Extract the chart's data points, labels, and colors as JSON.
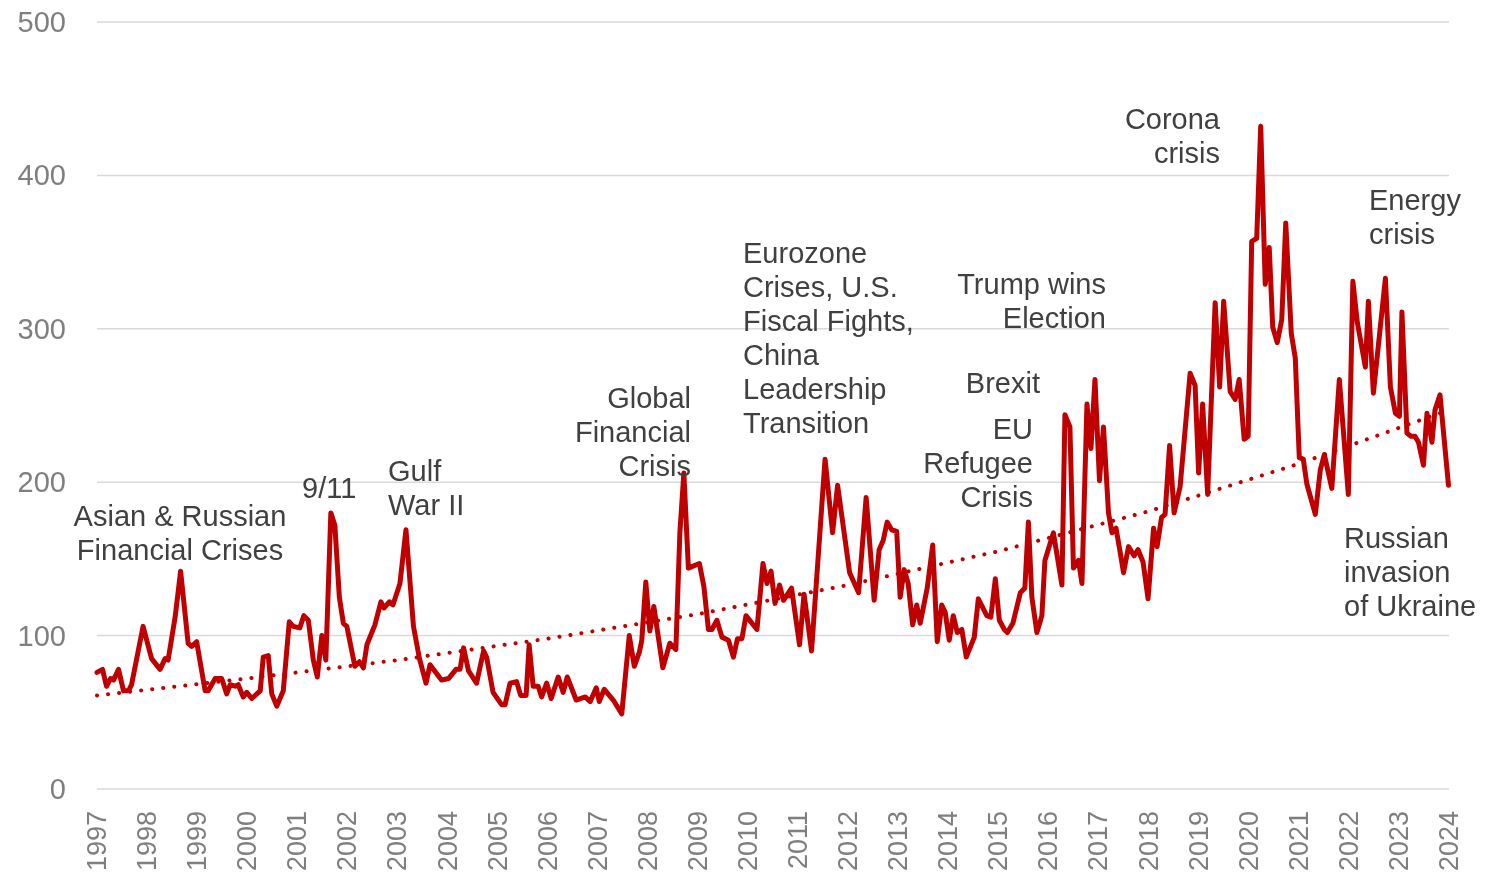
{
  "chart_data": {
    "type": "line",
    "x": [
      1997.0,
      1997.11,
      1997.19,
      1997.27,
      1997.33,
      1997.43,
      1997.53,
      1997.63,
      1997.69,
      1997.92,
      1998.09,
      1998.26,
      1998.36,
      1998.42,
      1998.56,
      1998.67,
      1998.82,
      1998.89,
      1998.99,
      1999.16,
      1999.22,
      1999.36,
      1999.49,
      1999.59,
      1999.66,
      1999.76,
      1999.82,
      1999.92,
      1999.99,
      2000.09,
      2000.26,
      2000.32,
      2000.42,
      2000.49,
      2000.59,
      2000.72,
      2000.84,
      2000.92,
      2001.05,
      2001.13,
      2001.22,
      2001.32,
      2001.4,
      2001.49,
      2001.57,
      2001.67,
      2001.75,
      2001.84,
      2001.92,
      2001.99,
      2002.15,
      2002.24,
      2002.32,
      2002.39,
      2002.55,
      2002.67,
      2002.73,
      2002.84,
      2002.91,
      2003.05,
      2003.17,
      2003.32,
      2003.44,
      2003.57,
      2003.65,
      2003.88,
      2004.02,
      2004.17,
      2004.25,
      2004.32,
      2004.42,
      2004.58,
      2004.72,
      2004.78,
      2004.91,
      2005.08,
      2005.15,
      2005.25,
      2005.38,
      2005.46,
      2005.57,
      2005.63,
      2005.71,
      2005.81,
      2005.88,
      2005.98,
      2006.07,
      2006.21,
      2006.31,
      2006.39,
      2006.57,
      2006.75,
      2006.85,
      2006.97,
      2007.03,
      2007.13,
      2007.31,
      2007.48,
      2007.63,
      2007.73,
      2007.83,
      2007.88,
      2007.96,
      2008.04,
      2008.12,
      2008.3,
      2008.44,
      2008.56,
      2008.64,
      2008.72,
      2008.81,
      2009.03,
      2009.12,
      2009.21,
      2009.28,
      2009.38,
      2009.48,
      2009.61,
      2009.71,
      2009.79,
      2009.88,
      2009.96,
      2010.18,
      2010.3,
      2010.38,
      2010.46,
      2010.54,
      2010.63,
      2010.71,
      2010.87,
      2011.03,
      2011.12,
      2011.27,
      2011.54,
      2011.69,
      2011.79,
      2012.03,
      2012.21,
      2012.36,
      2012.52,
      2012.62,
      2012.7,
      2012.78,
      2012.87,
      2012.97,
      2013.04,
      2013.12,
      2013.2,
      2013.29,
      2013.37,
      2013.44,
      2013.58,
      2013.69,
      2013.78,
      2013.87,
      2013.94,
      2014.02,
      2014.1,
      2014.18,
      2014.27,
      2014.36,
      2014.52,
      2014.6,
      2014.77,
      2014.85,
      2014.94,
      2015.02,
      2015.12,
      2015.18,
      2015.29,
      2015.44,
      2015.53,
      2015.6,
      2015.67,
      2015.77,
      2015.87,
      2015.93,
      2016.1,
      2016.27,
      2016.33,
      2016.43,
      2016.5,
      2016.6,
      2016.67,
      2016.77,
      2016.85,
      2016.93,
      2017.02,
      2017.1,
      2017.2,
      2017.27,
      2017.35,
      2017.43,
      2017.5,
      2017.6,
      2017.71,
      2017.79,
      2017.89,
      2017.99,
      2018.1,
      2018.17,
      2018.26,
      2018.33,
      2018.42,
      2018.51,
      2018.63,
      2018.83,
      2018.93,
      2019.0,
      2019.08,
      2019.18,
      2019.33,
      2019.42,
      2019.5,
      2019.63,
      2019.73,
      2019.81,
      2019.91,
      2019.99,
      2020.06,
      2020.16,
      2020.24,
      2020.33,
      2020.41,
      2020.48,
      2020.57,
      2020.66,
      2020.74,
      2020.85,
      2020.93,
      2021.01,
      2021.09,
      2021.16,
      2021.33,
      2021.43,
      2021.51,
      2021.66,
      2021.81,
      2021.99,
      2022.08,
      2022.17,
      2022.33,
      2022.39,
      2022.49,
      2022.73,
      2022.83,
      2022.93,
      2023.01,
      2023.06,
      2023.16,
      2023.24,
      2023.32,
      2023.39,
      2023.49,
      2023.56,
      2023.66,
      2023.72,
      2023.82,
      2023.99
    ],
    "series": [
      {
        "color": "#c00000",
        "line_style": "solid",
        "values": [
          76,
          78,
          67,
          72,
          71,
          78,
          64,
          64,
          68,
          106,
          85,
          78,
          85,
          84,
          112,
          142,
          95,
          93,
          96,
          64,
          64,
          72,
          72,
          62,
          68,
          67,
          68,
          60,
          63,
          59,
          64,
          86,
          87,
          62,
          54,
          64,
          109,
          106,
          105,
          113,
          110,
          84,
          73,
          100,
          84,
          180,
          172,
          125,
          108,
          106,
          80,
          83,
          79,
          94,
          107,
          122,
          118,
          122,
          120,
          134,
          169,
          106,
          85,
          69,
          81,
          71,
          72,
          78,
          78,
          92,
          77,
          69,
          90,
          86,
          63,
          55,
          55,
          69,
          70,
          61,
          61,
          94,
          67,
          67,
          60,
          69,
          59,
          73,
          63,
          73,
          58,
          60,
          57,
          66,
          57,
          65,
          58,
          49,
          100,
          80,
          89,
          97,
          135,
          103,
          119,
          79,
          95,
          91,
          167,
          206,
          144,
          147,
          132,
          104,
          104,
          110,
          99,
          97,
          86,
          98,
          98,
          113,
          104,
          147,
          134,
          142,
          121,
          133,
          123,
          131,
          94,
          127,
          90,
          215,
          167,
          198,
          141,
          128,
          190,
          123,
          156,
          162,
          174,
          169,
          168,
          125,
          143,
          134,
          107,
          120,
          108,
          131,
          159,
          96,
          120,
          115,
          97,
          113,
          102,
          104,
          86,
          99,
          124,
          113,
          112,
          137,
          110,
          104,
          102,
          108,
          128,
          131,
          174,
          125,
          102,
          113,
          149,
          167,
          133,
          244,
          236,
          144,
          149,
          134,
          251,
          222,
          267,
          201,
          236,
          180,
          167,
          170,
          155,
          141,
          158,
          152,
          156,
          148,
          124,
          170,
          158,
          177,
          179,
          224,
          180,
          197,
          271,
          263,
          206,
          251,
          192,
          317,
          262,
          318,
          259,
          254,
          267,
          228,
          230,
          357,
          359,
          432,
          329,
          353,
          301,
          291,
          306,
          369,
          297,
          281,
          216,
          215,
          199,
          179,
          208,
          218,
          196,
          267,
          192,
          331,
          304,
          275,
          318,
          258,
          333,
          262,
          245,
          243,
          311,
          232,
          230,
          230,
          226,
          211,
          245,
          226,
          247,
          257,
          198
        ]
      },
      {
        "type": "line",
        "color": "#c00000",
        "line_style": "dotted",
        "x": [
          1997,
          2000,
          2003,
          2006,
          2009,
          2012,
          2015,
          2018,
          2021,
          2023.9
        ],
        "values": [
          61,
          72,
          84,
          98,
          114,
          133,
          155,
          181,
          212,
          246
        ]
      }
    ],
    "xlim": [
      1997,
      2024
    ],
    "xticks": [
      1997,
      1998,
      1999,
      2000,
      2001,
      2002,
      2003,
      2004,
      2005,
      2006,
      2007,
      2008,
      2009,
      2010,
      2011,
      2012,
      2013,
      2014,
      2015,
      2016,
      2017,
      2018,
      2019,
      2020,
      2021,
      2022,
      2023,
      2024
    ],
    "ylim": [
      0,
      500
    ],
    "yticks": [
      0,
      100,
      200,
      300,
      400,
      500
    ],
    "grid": "y",
    "annotations": [
      "Asian & Russian\nFinancial Crises",
      "9/11",
      "Gulf\nWar II",
      "Global\nFinancial\nCrisis",
      "Eurozone\nCrises, U.S.\nFiscal Fights,\nChina\nLeadership\nTransition",
      "Trump wins\nElection",
      "Brexit",
      "EU\nRefugee\nCrisis",
      "Corona\ncrisis",
      "Energy\ncrisis",
      "Russian\ninvasion\nof Ukraine"
    ]
  }
}
